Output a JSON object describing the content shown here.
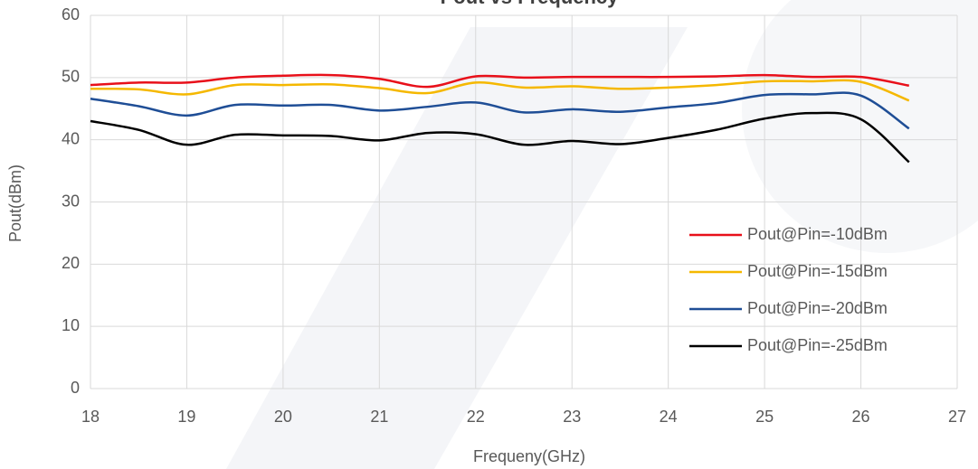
{
  "chart_data": {
    "type": "line",
    "title": "Pout vs Frequency",
    "x_label": "Frequeny(GHz)",
    "y_label": "Pout(dBm)",
    "x": [
      18,
      18.5,
      19,
      19.5,
      20,
      20.5,
      21,
      21.5,
      22,
      22.5,
      23,
      23.5,
      24,
      24.5,
      25,
      25.5,
      26,
      26.5
    ],
    "series": [
      {
        "name": "Pout@Pin=-10dBm",
        "color": "#e8101a",
        "values": [
          48.8,
          49.2,
          49.2,
          50.0,
          50.3,
          50.4,
          49.8,
          48.5,
          50.2,
          50.0,
          50.1,
          50.1,
          50.1,
          50.2,
          50.4,
          50.1,
          50.1,
          48.7
        ]
      },
      {
        "name": "Pout@Pin=-15dBm",
        "color": "#f5b800",
        "values": [
          48.2,
          48.1,
          47.3,
          48.8,
          48.8,
          48.9,
          48.3,
          47.5,
          49.2,
          48.4,
          48.6,
          48.2,
          48.4,
          48.8,
          49.4,
          49.4,
          49.3,
          46.3
        ]
      },
      {
        "name": "Pout@Pin=-20dBm",
        "color": "#1f4e96",
        "values": [
          46.6,
          45.4,
          43.9,
          45.6,
          45.5,
          45.6,
          44.7,
          45.3,
          46.0,
          44.4,
          44.9,
          44.5,
          45.2,
          45.9,
          47.2,
          47.3,
          47.1,
          41.8
        ]
      },
      {
        "name": "Pout@Pin=-25dBm",
        "color": "#000000",
        "values": [
          43.0,
          41.6,
          39.2,
          40.8,
          40.7,
          40.6,
          39.9,
          41.1,
          40.9,
          39.2,
          39.8,
          39.3,
          40.3,
          41.6,
          43.4,
          44.3,
          43.3,
          36.4
        ]
      }
    ],
    "xlim": [
      18,
      27
    ],
    "xticks": [
      18,
      19,
      20,
      21,
      22,
      23,
      24,
      25,
      26,
      27
    ],
    "ylim": [
      0,
      60
    ],
    "yticks": [
      0,
      10,
      20,
      30,
      40,
      50,
      60
    ],
    "grid": true,
    "legend": "lower right"
  }
}
